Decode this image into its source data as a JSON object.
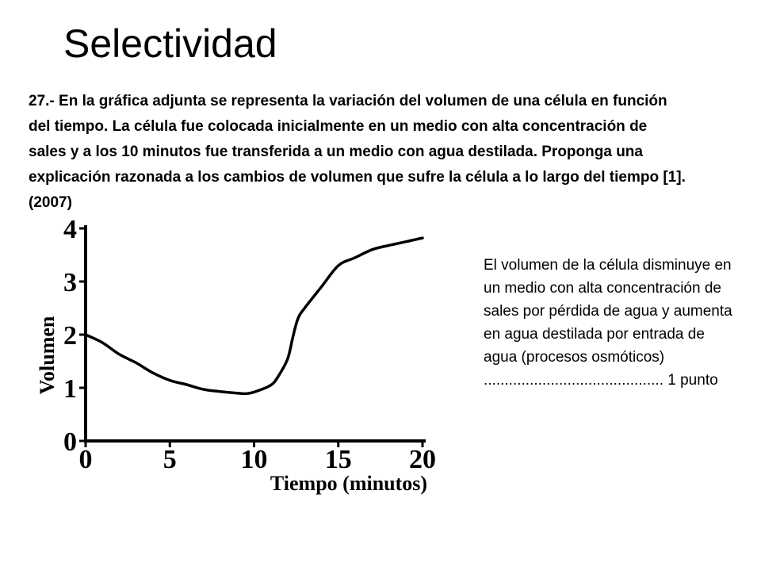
{
  "slide": {
    "title": "Selectividad",
    "question": "27.- En la gráfica adjunta se representa la variación del volumen de una célula en función del tiempo. La célula fue colocada inicialmente en un medio con alta concentración de sales y a los 10 minutos fue transferida a un medio con agua destilada. Proponga una explicación razonada a los cambios de volumen que sufre la célula a lo largo del tiempo [1]. (2007)",
    "answer": "El volumen de la célula disminuye en un medio con alta concentración de sales por pérdida de agua y aumenta en agua destilada por entrada de agua (procesos osmóticos) ........................................... 1 punto"
  },
  "chart_data": {
    "type": "line",
    "title": "",
    "xlabel": "Tiempo (minutos)",
    "ylabel": "Volumen",
    "xlim": [
      0,
      20
    ],
    "ylim": [
      0,
      4
    ],
    "x_ticks": [
      0,
      5,
      10,
      15,
      20
    ],
    "y_ticks": [
      0,
      1,
      2,
      3,
      4
    ],
    "grid": false,
    "series": [
      {
        "x": [
          0,
          1,
          2,
          3,
          4,
          5,
          6,
          7,
          8,
          9,
          9.5,
          10,
          11,
          11.5,
          12,
          12.3,
          12.6,
          13,
          14,
          15,
          16,
          17,
          18,
          19,
          20
        ],
        "values": [
          2.0,
          1.85,
          1.63,
          1.47,
          1.28,
          1.14,
          1.06,
          0.97,
          0.93,
          0.9,
          0.89,
          0.92,
          1.05,
          1.25,
          1.55,
          1.95,
          2.3,
          2.5,
          2.9,
          3.3,
          3.45,
          3.6,
          3.68,
          3.75,
          3.82
        ]
      }
    ]
  }
}
